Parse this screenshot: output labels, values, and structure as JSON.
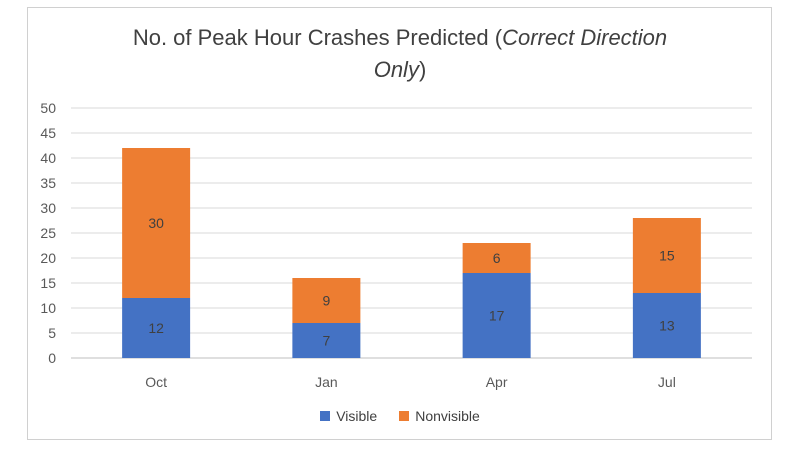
{
  "chart_data": {
    "type": "bar",
    "stacked": true,
    "title_main": "No. of Peak Hour Crashes Predicted (",
    "title_italic_1": "Correct Direction",
    "title_italic_2": "Only",
    "title_close": ")",
    "categories": [
      "Oct",
      "Jan",
      "Apr",
      "Jul"
    ],
    "series": [
      {
        "name": "Visible",
        "values": [
          12,
          7,
          17,
          13
        ],
        "color": "#4472c4"
      },
      {
        "name": "Nonvisible",
        "values": [
          30,
          9,
          6,
          15
        ],
        "color": "#ed7d31"
      }
    ],
    "yticks": [
      "0",
      "5",
      "10",
      "15",
      "20",
      "25",
      "30",
      "35",
      "40",
      "45",
      "50"
    ],
    "ylim": [
      0,
      50
    ],
    "grid": true,
    "legend_position": "bottom",
    "data_labels": true
  }
}
